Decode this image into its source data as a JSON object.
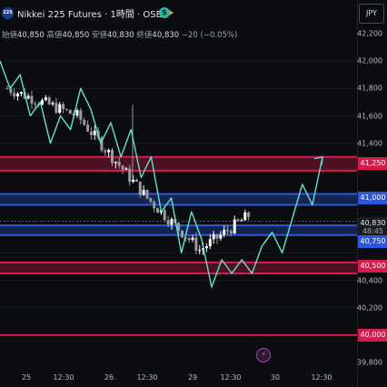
{
  "header": {
    "logo_text": "225",
    "title": "Nikkei 225 Futures · 1時間 · OSE",
    "flag_icon": "flag-icon",
    "dollar_icon": "$"
  },
  "ohlc": {
    "open_label": "始値",
    "open": "40,850",
    "high_label": "高値",
    "high": "40,850",
    "low_label": "安値",
    "low": "40,830",
    "close_label": "終値",
    "close": "40,830",
    "change": "−20 (−0.05%)"
  },
  "currency_button": "JPY",
  "price_axis": {
    "ticks": [
      "42,200",
      "42,000",
      "41,800",
      "41,600",
      "41,400",
      "41,250",
      "41,000",
      "40,830",
      "40,750",
      "40,500",
      "40,400",
      "40,200",
      "40,000",
      "39,800"
    ],
    "labels": {
      "resistance": "41,250",
      "blue_top": "41,000",
      "current_price": "40,830",
      "countdown": "48:45",
      "blue_bottom": "40,750",
      "support": "40,500",
      "bottom_line": "40,000"
    }
  },
  "time_axis": [
    "25",
    "12:30",
    "26",
    "12:30",
    "29",
    "12:30",
    "30",
    "12:30"
  ],
  "colors": {
    "red_zone": "#d81b4f",
    "blue_zone": "#2b57d8",
    "arrow": "#63e0d0",
    "bull": "#ffffff",
    "bear": "#9a9ca3"
  },
  "chart_data": {
    "type": "candlestick",
    "y_range": [
      39800,
      42200
    ],
    "zones": [
      {
        "kind": "resistance",
        "low": 41200,
        "high": 41300
      },
      {
        "kind": "blue",
        "low": 40950,
        "high": 41030
      },
      {
        "kind": "blue",
        "low": 40730,
        "high": 40800
      },
      {
        "kind": "support",
        "low": 40450,
        "high": 40530
      },
      {
        "kind": "line",
        "value": 40000
      }
    ],
    "current_price": 40830,
    "path_prices": [
      42000,
      41800,
      41900,
      41600,
      41700,
      41400,
      41600,
      41500,
      41800,
      41650,
      41400,
      41550,
      41300,
      41500,
      41150,
      41300,
      40900,
      41000,
      40600,
      40900,
      40700,
      40350,
      40550,
      40450,
      40550,
      40450,
      40650,
      40750,
      40600,
      40850,
      41100,
      40950,
      41300
    ]
  }
}
